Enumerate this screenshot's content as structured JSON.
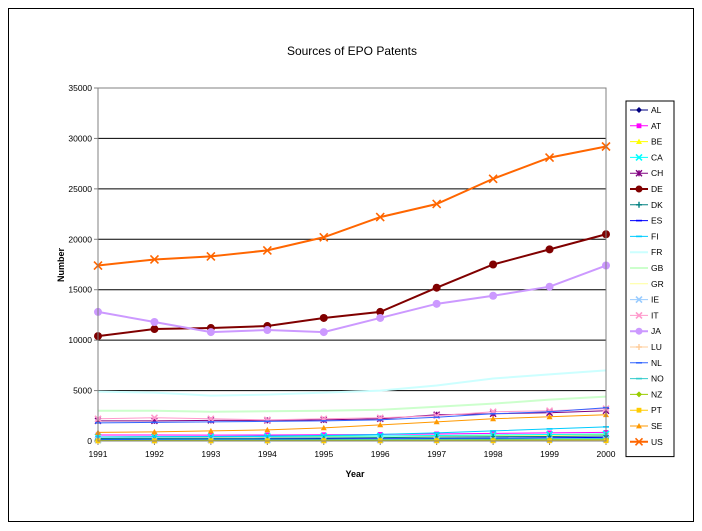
{
  "chart_data": {
    "type": "line",
    "title": "Sources of EPO Patents",
    "xlabel": "Year",
    "ylabel": "Number",
    "x": [
      1991,
      1992,
      1993,
      1994,
      1995,
      1996,
      1997,
      1998,
      1999,
      2000
    ],
    "ylim": [
      0,
      35000
    ],
    "yticks": [
      0,
      5000,
      10000,
      15000,
      20000,
      25000,
      30000,
      35000
    ],
    "grid": true,
    "legend_position": "right",
    "series": [
      {
        "name": "AL",
        "color": "#000080",
        "marker": "diamond",
        "width": 1,
        "values": [
          20,
          20,
          20,
          25,
          25,
          30,
          30,
          35,
          35,
          40
        ]
      },
      {
        "name": "AT",
        "color": "#FF00FF",
        "marker": "square",
        "width": 1,
        "values": [
          600,
          600,
          580,
          600,
          620,
          650,
          700,
          750,
          800,
          850
        ]
      },
      {
        "name": "BE",
        "color": "#FFFF00",
        "marker": "triangle",
        "width": 1,
        "values": [
          400,
          420,
          420,
          430,
          450,
          480,
          520,
          560,
          600,
          650
        ]
      },
      {
        "name": "CA",
        "color": "#00FFFF",
        "marker": "x",
        "width": 1,
        "values": [
          400,
          420,
          430,
          450,
          480,
          500,
          550,
          600,
          650,
          700
        ]
      },
      {
        "name": "CH",
        "color": "#800080",
        "marker": "star",
        "width": 1,
        "values": [
          2000,
          2000,
          2050,
          2050,
          2100,
          2200,
          2600,
          2700,
          2800,
          3000
        ]
      },
      {
        "name": "DE",
        "color": "#800000",
        "marker": "circle",
        "width": 2,
        "values": [
          10400,
          11100,
          11200,
          11400,
          12200,
          12800,
          15200,
          17500,
          19000,
          20500
        ]
      },
      {
        "name": "DK",
        "color": "#008080",
        "marker": "plus",
        "width": 1,
        "values": [
          250,
          260,
          270,
          280,
          300,
          330,
          380,
          420,
          450,
          500
        ]
      },
      {
        "name": "ES",
        "color": "#0000FF",
        "marker": "dash",
        "width": 1,
        "values": [
          150,
          160,
          170,
          180,
          200,
          220,
          250,
          280,
          320,
          360
        ]
      },
      {
        "name": "FI",
        "color": "#00CCFF",
        "marker": "dash",
        "width": 1,
        "values": [
          400,
          420,
          440,
          500,
          550,
          650,
          800,
          1000,
          1200,
          1400
        ]
      },
      {
        "name": "FR",
        "color": "#CCFFFF",
        "marker": "none",
        "width": 2,
        "values": [
          4900,
          4800,
          4500,
          4600,
          4800,
          5000,
          5500,
          6200,
          6600,
          7000
        ]
      },
      {
        "name": "GB",
        "color": "#CCFFCC",
        "marker": "none",
        "width": 2,
        "values": [
          3000,
          3000,
          2900,
          2950,
          3000,
          3100,
          3400,
          3700,
          4100,
          4400
        ]
      },
      {
        "name": "GR",
        "color": "#FFFF99",
        "marker": "none",
        "width": 1,
        "values": [
          20,
          20,
          20,
          25,
          25,
          30,
          30,
          35,
          40,
          45
        ]
      },
      {
        "name": "IE",
        "color": "#99CCFF",
        "marker": "x",
        "width": 1,
        "values": [
          80,
          85,
          90,
          95,
          100,
          110,
          120,
          130,
          140,
          150
        ]
      },
      {
        "name": "IT",
        "color": "#FF99CC",
        "marker": "x",
        "width": 1,
        "values": [
          2200,
          2300,
          2200,
          2100,
          2200,
          2300,
          2500,
          2900,
          3000,
          3200
        ]
      },
      {
        "name": "JA",
        "color": "#CC99FF",
        "marker": "circle",
        "width": 2,
        "values": [
          12800,
          11800,
          10800,
          11000,
          10800,
          12200,
          13600,
          14400,
          15300,
          17400
        ]
      },
      {
        "name": "LU",
        "color": "#FFCC99",
        "marker": "plus",
        "width": 1,
        "values": [
          30,
          30,
          30,
          35,
          35,
          40,
          40,
          45,
          45,
          50
        ]
      },
      {
        "name": "NL",
        "color": "#3366FF",
        "marker": "dash",
        "width": 1,
        "values": [
          1800,
          1850,
          1900,
          1950,
          2000,
          2100,
          2350,
          2700,
          2900,
          3300
        ]
      },
      {
        "name": "NO",
        "color": "#33CCCC",
        "marker": "dash",
        "width": 1,
        "values": [
          100,
          110,
          120,
          130,
          140,
          160,
          180,
          200,
          220,
          250
        ]
      },
      {
        "name": "NZ",
        "color": "#99CC00",
        "marker": "diamond",
        "width": 1,
        "values": [
          50,
          55,
          60,
          65,
          70,
          80,
          90,
          100,
          110,
          120
        ]
      },
      {
        "name": "PT",
        "color": "#FFCC00",
        "marker": "square",
        "width": 1,
        "values": [
          10,
          10,
          10,
          10,
          15,
          15,
          20,
          20,
          25,
          30
        ]
      },
      {
        "name": "SE",
        "color": "#FF9900",
        "marker": "triangle",
        "width": 1,
        "values": [
          850,
          900,
          1000,
          1100,
          1300,
          1600,
          1900,
          2200,
          2400,
          2600
        ]
      },
      {
        "name": "US",
        "color": "#FF6600",
        "marker": "x",
        "width": 2,
        "values": [
          17400,
          18000,
          18300,
          18900,
          20200,
          22200,
          23500,
          26000,
          28100,
          29200
        ]
      }
    ]
  }
}
